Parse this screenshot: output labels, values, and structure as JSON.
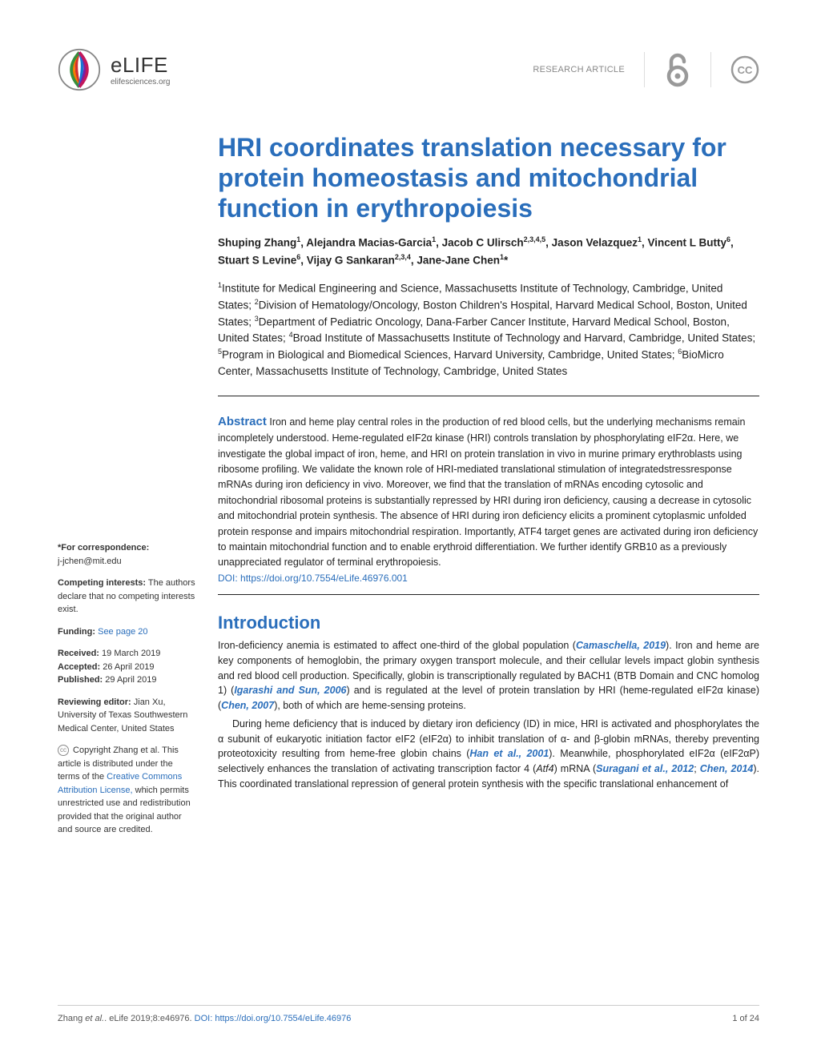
{
  "header": {
    "brand": "eLIFE",
    "url": "elifesciences.org",
    "article_type": "RESEARCH ARTICLE",
    "logo_colors": [
      "#d32f2f",
      "#f57c00",
      "#388e3c",
      "#1976d2",
      "#7b1fa2",
      "#c2185b"
    ],
    "oa_color": "#999999",
    "cc_color": "#999999"
  },
  "title": "HRI coordinates translation necessary for protein homeostasis and mitochondrial function in erythropoiesis",
  "authors_html": "Shuping Zhang<sup>1</sup>, Alejandra Macias-Garcia<sup>1</sup>, Jacob C Ulirsch<sup>2,3,4,5</sup>, Jason Velazquez<sup>1</sup>, Vincent L Butty<sup>6</sup>, Stuart S Levine<sup>6</sup>, Vijay G Sankaran<sup>2,3,4</sup>, Jane-Jane Chen<sup>1</sup>*",
  "affiliations_html": "<sup>1</sup>Institute for Medical Engineering and Science, Massachusetts Institute of Technology, Cambridge, United States; <sup>2</sup>Division of Hematology/Oncology, Boston Children's Hospital, Harvard Medical School, Boston, United States; <sup>3</sup>Department of Pediatric Oncology, Dana-Farber Cancer Institute, Harvard Medical School, Boston, United States; <sup>4</sup>Broad Institute of Massachusetts Institute of Technology and Harvard, Cambridge, United States; <sup>5</sup>Program in Biological and Biomedical Sciences, Harvard University, Cambridge, United States; <sup>6</sup>BioMicro Center, Massachusetts Institute of Technology, Cambridge, United States",
  "abstract": {
    "label": "Abstract",
    "text": "Iron and heme play central roles in the production of red blood cells, but the underlying mechanisms remain incompletely understood. Heme-regulated eIF2α kinase (HRI) controls translation by phosphorylating eIF2α. Here, we investigate the global impact of iron, heme, and HRI on protein translation in vivo in murine primary erythroblasts using ribosome profiling. We validate the known role of HRI-mediated translational stimulation of integratedstressresponse mRNAs during iron deficiency in vivo. Moreover, we find that the translation of mRNAs encoding cytosolic and mitochondrial ribosomal proteins is substantially repressed by HRI during iron deficiency, causing a decrease in cytosolic and mitochondrial protein synthesis. The absence of HRI during iron deficiency elicits a prominent cytoplasmic unfolded protein response and impairs mitochondrial respiration. Importantly, ATF4 target genes are activated during iron deficiency to maintain mitochondrial function and to enable erythroid differentiation. We further identify GRB10 as a previously unappreciated regulator of terminal erythropoiesis.",
    "doi_label": "DOI: ",
    "doi": "https://doi.org/10.7554/eLife.46976.001"
  },
  "sidebar": {
    "correspond_label": "*For correspondence:",
    "correspond_email": "j-jchen@mit.edu",
    "competing_label": "Competing interests:",
    "competing_text": " The authors declare that no competing interests exist.",
    "funding_label": "Funding:",
    "funding_link": " See page 20",
    "received_label": "Received: ",
    "received_val": "19 March 2019",
    "accepted_label": "Accepted: ",
    "accepted_val": "26 April 2019",
    "published_label": "Published: ",
    "published_val": "29 April 2019",
    "reviewing_label": "Reviewing editor: ",
    "reviewing_val": " Jian Xu, University of Texas Southwestern Medical Center, United States",
    "copyright_pre": " Copyright Zhang et al. This article is distributed under the terms of the ",
    "copyright_link": "Creative Commons Attribution License,",
    "copyright_post": " which permits unrestricted use and redistribution provided that the original author and source are credited."
  },
  "intro": {
    "heading": "Introduction",
    "p1_html": "Iron-deficiency anemia is estimated to affect one-third of the global population (<span class='cite'>Camaschella, 2019</span>). Iron and heme are key components of hemoglobin, the primary oxygen transport molecule, and their cellular levels impact globin synthesis and red blood cell production. Specifically, globin is transcriptionally regulated by BACH1 (BTB Domain and CNC homolog 1) (<span class='cite'>Igarashi and Sun, 2006</span>) and is regulated at the level of protein translation by HRI (heme-regulated eIF2α kinase) (<span class='cite'>Chen, 2007</span>), both of which are heme-sensing proteins.",
    "p2_html": "During heme deficiency that is induced by dietary iron deficiency (ID) in mice, HRI is activated and phosphorylates the α subunit of eukaryotic initiation factor eIF2 (eIF2α) to inhibit translation of α- and β-globin mRNAs, thereby preventing proteotoxicity resulting from heme-free globin chains (<span class='cite'>Han et al., 2001</span>). Meanwhile, phosphorylated eIF2α (eIF2αP) selectively enhances the translation of activating transcription factor 4 (<i>Atf4</i>) mRNA (<span class='cite'>Suragani et al., 2012</span>; <span class='cite'>Chen, 2014</span>). This coordinated translational repression of general protein synthesis with the specific translational enhancement of"
  },
  "footer": {
    "citation_pre": "Zhang ",
    "citation_post": " eLife 2019;8:e46976. ",
    "etal": "et al.",
    "doi_label": "DOI: ",
    "doi": "https://doi.org/10.7554/eLife.46976",
    "page": "1 of 24"
  }
}
